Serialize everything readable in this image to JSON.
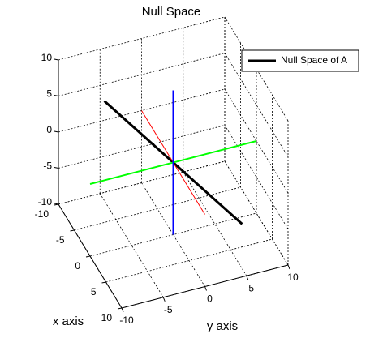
{
  "chart_data": {
    "type": "line3d",
    "title": "Null Space",
    "xlabel": "x axis",
    "ylabel": "y axis",
    "xlim": [
      -10,
      10
    ],
    "ylim": [
      -10,
      10
    ],
    "zlim": [
      -10,
      10
    ],
    "xticks": [
      -10,
      -5,
      0,
      5,
      10
    ],
    "yticks": [
      -10,
      -5,
      0,
      5,
      10
    ],
    "zticks": [
      -10,
      -5,
      0,
      5,
      10
    ],
    "grid": true,
    "legend": "northeast",
    "series": [
      {
        "name": "Null Space of A",
        "color": "#000000",
        "width": 3,
        "x": [
          -6,
          6
        ],
        "y": [
          -6,
          6
        ],
        "z": [
          6,
          -6
        ]
      },
      {
        "color": "#ff0000",
        "width": 1,
        "x": [
          -10,
          10
        ],
        "y": [
          0,
          0
        ],
        "z": [
          0,
          0
        ]
      },
      {
        "color": "#00ff00",
        "width": 2,
        "x": [
          0,
          0
        ],
        "y": [
          -10,
          10
        ],
        "z": [
          0,
          0
        ]
      },
      {
        "color": "#0000ff",
        "width": 2,
        "x": [
          0,
          0
        ],
        "y": [
          0,
          0
        ],
        "z": [
          -10,
          10
        ]
      }
    ]
  }
}
